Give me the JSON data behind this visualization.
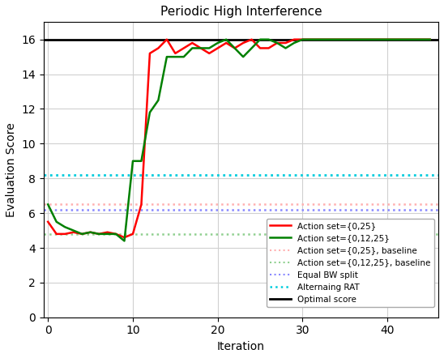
{
  "title": "Periodic High Interference",
  "xlabel": "Iteration",
  "ylabel": "Evaluation Score",
  "ylim": [
    0,
    17
  ],
  "xlim": [
    -0.5,
    46
  ],
  "yticks": [
    0,
    2,
    4,
    6,
    8,
    10,
    12,
    14,
    16
  ],
  "xticks": [
    0,
    10,
    20,
    30,
    40
  ],
  "red_x": [
    0,
    1,
    2,
    3,
    4,
    5,
    6,
    7,
    8,
    9,
    10,
    11,
    12,
    13,
    14,
    15,
    16,
    17,
    18,
    19,
    20,
    21,
    22,
    23,
    24,
    25,
    26,
    27,
    28,
    29,
    30,
    35,
    40,
    45
  ],
  "red_y": [
    5.5,
    4.8,
    4.8,
    4.9,
    4.8,
    4.9,
    4.8,
    4.9,
    4.8,
    4.6,
    4.8,
    6.5,
    15.2,
    15.5,
    16.0,
    15.2,
    15.5,
    15.8,
    15.5,
    15.2,
    15.5,
    15.8,
    15.5,
    15.8,
    16.0,
    15.5,
    15.5,
    15.8,
    15.8,
    16.0,
    16.0,
    16.0,
    16.0,
    16.0
  ],
  "green_x": [
    0,
    1,
    2,
    3,
    4,
    5,
    6,
    7,
    8,
    9,
    10,
    11,
    12,
    13,
    14,
    15,
    16,
    17,
    18,
    19,
    20,
    21,
    22,
    23,
    24,
    25,
    26,
    27,
    28,
    29,
    30,
    35,
    40,
    45
  ],
  "green_y": [
    6.5,
    5.5,
    5.2,
    5.0,
    4.8,
    4.9,
    4.8,
    4.8,
    4.8,
    4.4,
    9.0,
    9.0,
    11.8,
    12.5,
    15.0,
    15.0,
    15.0,
    15.5,
    15.5,
    15.5,
    15.8,
    16.0,
    15.5,
    15.0,
    15.5,
    16.0,
    16.0,
    15.8,
    15.5,
    15.8,
    16.0,
    16.0,
    16.0,
    16.0
  ],
  "red_baseline": 6.5,
  "green_baseline": 4.8,
  "blue_baseline": 6.2,
  "cyan_baseline": 8.2,
  "optimal": 16.0,
  "red_color": "#ff0000",
  "green_color": "#008000",
  "red_baseline_color": "#ffb0b0",
  "green_baseline_color": "#90d090",
  "blue_baseline_color": "#8888ff",
  "cyan_baseline_color": "#00ccdd",
  "optimal_color": "#000000",
  "legend_labels": [
    "Action set={0,25}",
    "Action set={0,12,25}",
    "Action set={0,25}, baseline",
    "Action set={0,12,25}, baseline",
    "Equal BW split",
    "Alternaing RAT",
    "Optimal score"
  ],
  "background_color": "#ffffff",
  "grid_color": "#d0d0d0"
}
